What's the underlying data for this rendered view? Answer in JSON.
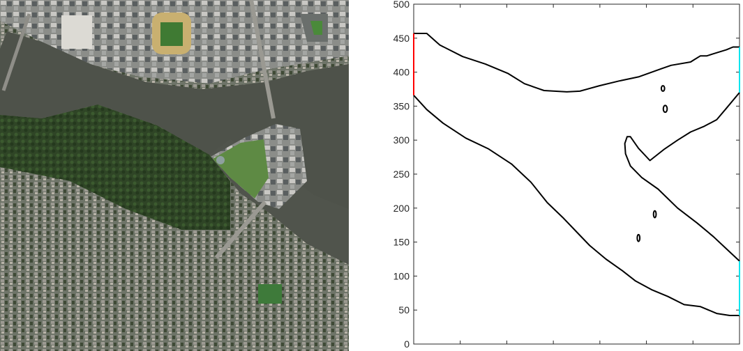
{
  "aerial_photo": {
    "description_icon": "aerial-satellite-photo"
  },
  "chart_data": {
    "type": "line",
    "title": "",
    "xlabel": "",
    "ylabel": "",
    "ylim": [
      0,
      500
    ],
    "yticks": [
      0,
      50,
      100,
      150,
      200,
      250,
      300,
      350,
      400,
      450,
      500
    ],
    "yticklabels": [
      "0",
      "50",
      "100",
      "150",
      "200",
      "250",
      "300",
      "350",
      "400",
      "450",
      "500"
    ],
    "xlim": [
      0,
      1000
    ],
    "grid": false,
    "series": [
      {
        "color": "#000000",
        "role": "channel-outline-upper",
        "x": [
          0,
          40,
          80,
          150,
          220,
          290,
          340,
          400,
          470,
          510,
          570,
          630,
          690,
          760,
          790,
          850,
          860,
          880,
          900,
          920,
          960,
          980,
          1000
        ],
        "y": [
          457,
          457,
          440,
          423,
          412,
          398,
          383,
          373,
          371,
          372,
          380,
          387,
          393,
          405,
          410,
          415,
          418,
          424,
          424,
          427,
          433,
          437,
          437
        ]
      },
      {
        "color": "#000000",
        "role": "channel-outline-lower-left",
        "x": [
          0,
          40,
          90,
          160,
          230,
          300,
          360,
          410,
          460,
          500,
          540,
          590,
          640,
          680,
          730,
          780,
          830,
          880,
          930,
          970,
          1000
        ],
        "y": [
          366,
          345,
          325,
          303,
          287,
          265,
          238,
          208,
          185,
          165,
          145,
          125,
          108,
          93,
          80,
          70,
          58,
          55,
          45,
          42,
          42
        ]
      },
      {
        "color": "#000000",
        "role": "channel-outline-inner",
        "x": [
          1000,
          960,
          930,
          890,
          850,
          810,
          770,
          725,
          690,
          665,
          655,
          648,
          650,
          665,
          700,
          750,
          810,
          870,
          920,
          960,
          1000
        ],
        "y": [
          370,
          347,
          330,
          320,
          312,
          300,
          287,
          270,
          288,
          305,
          305,
          295,
          280,
          262,
          245,
          228,
          200,
          178,
          158,
          140,
          122
        ]
      },
      {
        "color": "#ff0000",
        "role": "inlet-boundary",
        "x": [
          0,
          0
        ],
        "y": [
          366,
          457
        ]
      },
      {
        "color": "#00e5ee",
        "role": "outlet-boundary-upper",
        "x": [
          1000,
          1000
        ],
        "y": [
          370,
          437
        ]
      },
      {
        "color": "#00e5ee",
        "role": "outlet-boundary-lower",
        "x": [
          1000,
          1000
        ],
        "y": [
          42,
          122
        ]
      }
    ],
    "obstacles": [
      {
        "cx": 765,
        "cy": 376,
        "rx": 5,
        "ry": 4
      },
      {
        "cx": 772,
        "cy": 346,
        "rx": 6,
        "ry": 5
      },
      {
        "cx": 740,
        "cy": 191,
        "rx": 4,
        "ry": 5
      },
      {
        "cx": 690,
        "cy": 156,
        "rx": 4,
        "ry": 5
      }
    ]
  }
}
